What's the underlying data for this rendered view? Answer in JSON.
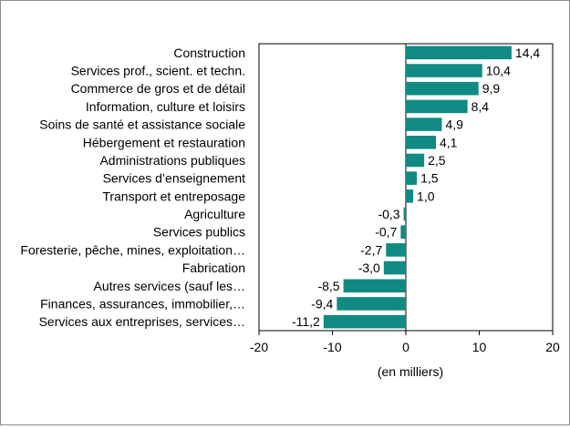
{
  "chart_data": {
    "type": "bar",
    "orientation": "horizontal",
    "categories": [
      "Construction",
      "Services prof., scient. et techn.",
      "Commerce de gros et de détail",
      "Information, culture et loisirs",
      "Soins de santé et assistance sociale",
      "Hébergement et restauration",
      "Administrations publiques",
      "Services d’enseignement",
      "Transport et entreposage",
      "Agriculture",
      "Services publics",
      "Foresterie, pêche, mines, exploitation…",
      "Fabrication",
      "Autres services (sauf les…",
      "Finances, assurances, immobilier,…",
      "Services aux entreprises, services…"
    ],
    "values": [
      14.4,
      10.4,
      9.9,
      8.4,
      4.9,
      4.1,
      2.5,
      1.5,
      1.0,
      -0.3,
      -0.7,
      -2.7,
      -3.0,
      -8.5,
      -9.4,
      -11.2
    ],
    "value_labels": [
      "14,4",
      "10,4",
      "9,9",
      "8,4",
      "4,9",
      "4,1",
      "2,5",
      "1,5",
      "1,0",
      "-0,3",
      "-0,7",
      "-2,7",
      "-3,0",
      "-8,5",
      "-9,4",
      "-11,2"
    ],
    "title": "",
    "xlabel": "(en milliers)",
    "ylabel": "",
    "xlim": [
      -20,
      20
    ],
    "xticks": [
      -20,
      -10,
      0,
      10,
      20
    ],
    "xtick_labels": [
      "-20",
      "-10",
      "0",
      "10",
      "20"
    ],
    "grid": false,
    "legend": "none",
    "bar_color": "#108a82"
  }
}
